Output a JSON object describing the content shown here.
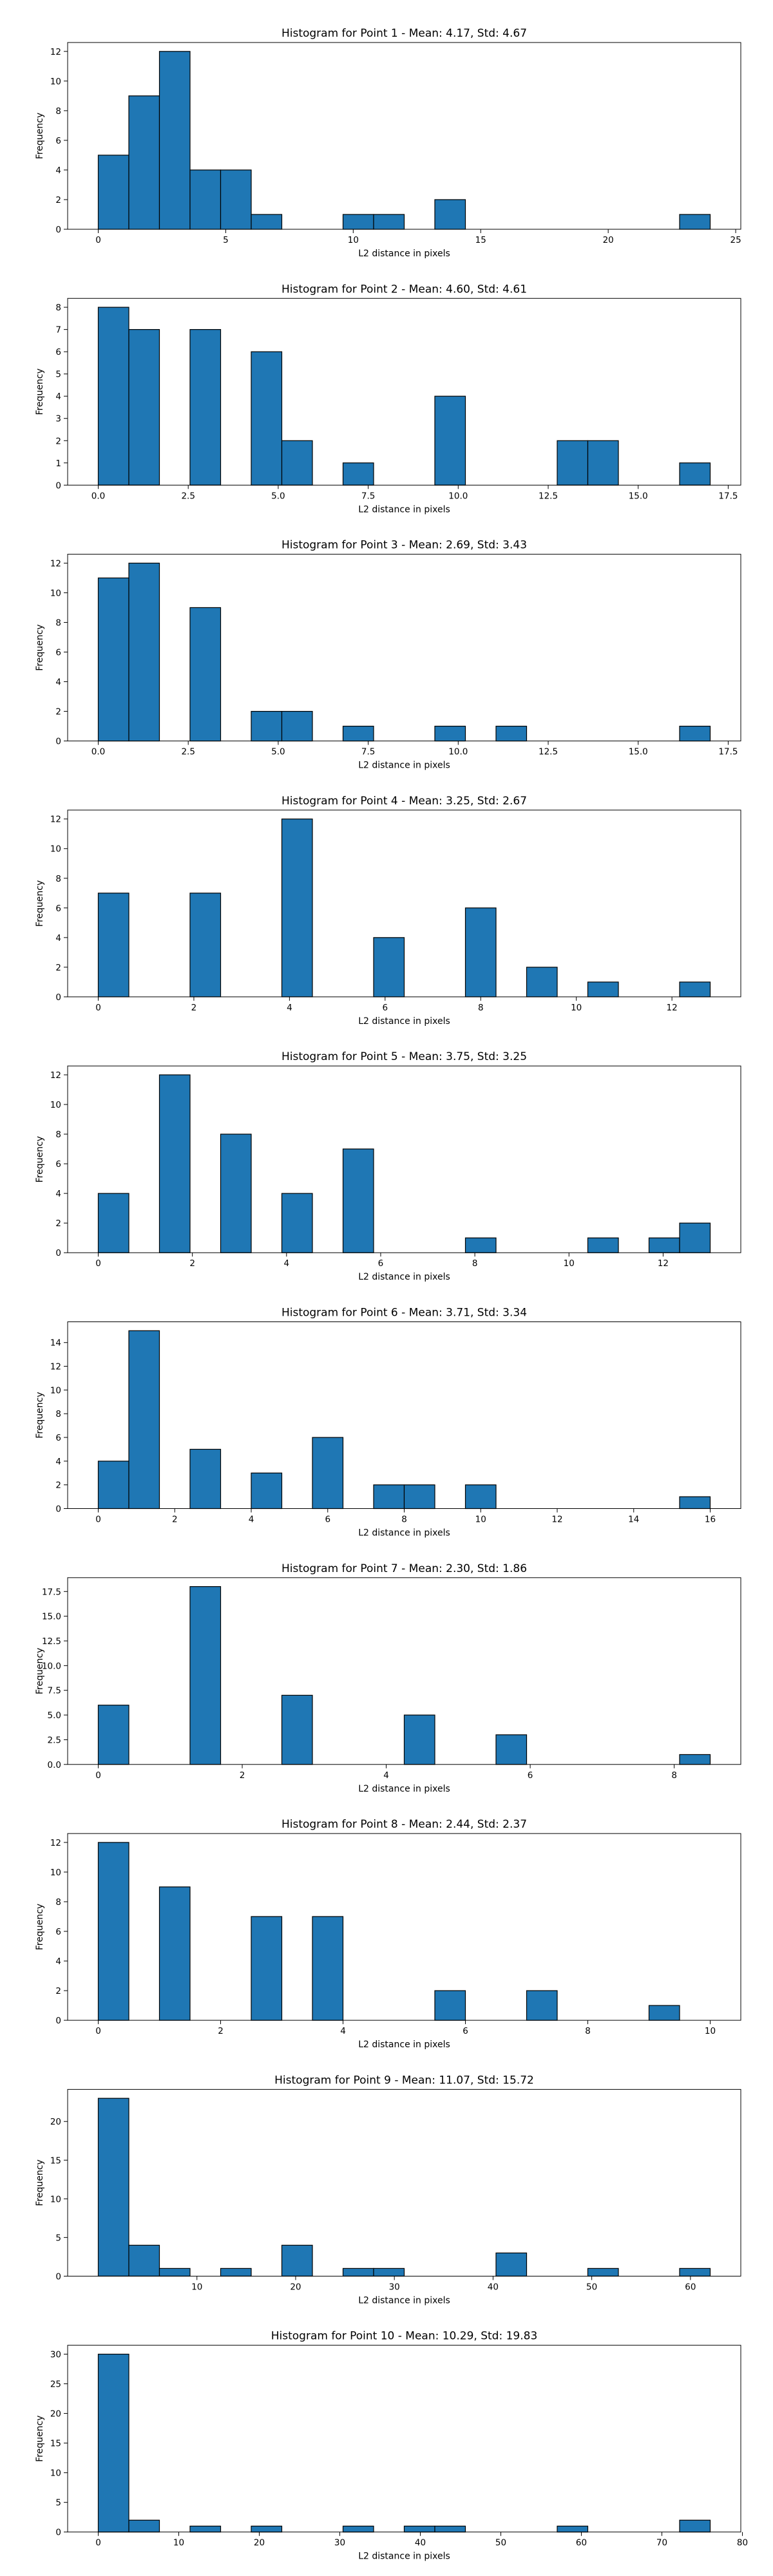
{
  "chart_data": [
    {
      "type": "bar",
      "title": "Histogram for Point 1 - Mean: 4.17, Std: 4.67",
      "xlabel": "L2 distance in pixels",
      "ylabel": "Frequency",
      "xlim": [
        -1.2,
        25.2
      ],
      "ylim": [
        0,
        12.6
      ],
      "xticks": [
        0,
        5,
        10,
        15,
        20,
        25
      ],
      "xtick_labels": [
        "0",
        "5",
        "10",
        "15",
        "20",
        "25"
      ],
      "yticks": [
        0,
        2,
        4,
        6,
        8,
        10,
        12
      ],
      "ytick_labels": [
        "0",
        "2",
        "4",
        "6",
        "8",
        "10",
        "12"
      ],
      "bin_edges": [
        0.0,
        1.2,
        2.4,
        3.6,
        4.8,
        6.0,
        7.2,
        8.4,
        9.6,
        10.8,
        12.0,
        13.2,
        14.4,
        15.6,
        16.8,
        18.0,
        19.2,
        20.4,
        21.6,
        22.8,
        24.0
      ],
      "values": [
        5,
        9,
        12,
        4,
        4,
        1,
        0,
        0,
        1,
        1,
        0,
        2,
        0,
        0,
        0,
        0,
        0,
        0,
        0,
        1
      ]
    },
    {
      "type": "bar",
      "title": "Histogram for Point 2 - Mean: 4.60, Std: 4.61",
      "xlabel": "L2 distance in pixels",
      "ylabel": "Frequency",
      "xlim": [
        -0.85,
        17.85
      ],
      "ylim": [
        0,
        8.4
      ],
      "xticks": [
        0,
        2.5,
        5,
        7.5,
        10,
        12.5,
        15,
        17.5
      ],
      "xtick_labels": [
        "0.0",
        "2.5",
        "5.0",
        "7.5",
        "10.0",
        "12.5",
        "15.0",
        "17.5"
      ],
      "yticks": [
        0,
        1,
        2,
        3,
        4,
        5,
        6,
        7,
        8
      ],
      "ytick_labels": [
        "0",
        "1",
        "2",
        "3",
        "4",
        "5",
        "6",
        "7",
        "8"
      ],
      "bin_edges": [
        0.0,
        0.85,
        1.7,
        2.55,
        3.4,
        4.25,
        5.1,
        5.95,
        6.8,
        7.65,
        8.5,
        9.35,
        10.2,
        11.05,
        11.9,
        12.75,
        13.6,
        14.45,
        15.3,
        16.15,
        17.0
      ],
      "values": [
        8,
        7,
        0,
        7,
        0,
        6,
        2,
        0,
        1,
        0,
        0,
        4,
        0,
        0,
        0,
        2,
        2,
        0,
        0,
        1
      ]
    },
    {
      "type": "bar",
      "title": "Histogram for Point 3 - Mean: 2.69, Std: 3.43",
      "xlabel": "L2 distance in pixels",
      "ylabel": "Frequency",
      "xlim": [
        -0.85,
        17.85
      ],
      "ylim": [
        0,
        12.6
      ],
      "xticks": [
        0,
        2.5,
        5,
        7.5,
        10,
        12.5,
        15,
        17.5
      ],
      "xtick_labels": [
        "0.0",
        "2.5",
        "5.0",
        "7.5",
        "10.0",
        "12.5",
        "15.0",
        "17.5"
      ],
      "yticks": [
        0,
        2,
        4,
        6,
        8,
        10,
        12
      ],
      "ytick_labels": [
        "0",
        "2",
        "4",
        "6",
        "8",
        "10",
        "12"
      ],
      "bin_edges": [
        0.0,
        0.85,
        1.7,
        2.55,
        3.4,
        4.25,
        5.1,
        5.95,
        6.8,
        7.65,
        8.5,
        9.35,
        10.2,
        11.05,
        11.9,
        12.75,
        13.6,
        14.45,
        15.3,
        16.15,
        17.0
      ],
      "values": [
        11,
        12,
        0,
        9,
        0,
        2,
        2,
        0,
        1,
        0,
        0,
        1,
        0,
        1,
        0,
        0,
        0,
        0,
        0,
        1
      ]
    },
    {
      "type": "bar",
      "title": "Histogram for Point 4 - Mean: 3.25, Std: 2.67",
      "xlabel": "L2 distance in pixels",
      "ylabel": "Frequency",
      "xlim": [
        -0.64,
        13.44
      ],
      "ylim": [
        0,
        12.6
      ],
      "xticks": [
        0,
        2,
        4,
        6,
        8,
        10,
        12
      ],
      "xtick_labels": [
        "0",
        "2",
        "4",
        "6",
        "8",
        "10",
        "12"
      ],
      "yticks": [
        0,
        2,
        4,
        6,
        8,
        10,
        12
      ],
      "ytick_labels": [
        "0",
        "2",
        "4",
        "6",
        "8",
        "10",
        "12"
      ],
      "bin_edges": [
        0.0,
        0.64,
        1.28,
        1.92,
        2.56,
        3.2,
        3.84,
        4.48,
        5.12,
        5.76,
        6.4,
        7.04,
        7.68,
        8.32,
        8.96,
        9.6,
        10.24,
        10.88,
        11.52,
        12.16,
        12.8
      ],
      "values": [
        7,
        0,
        0,
        7,
        0,
        0,
        12,
        0,
        0,
        4,
        0,
        0,
        6,
        0,
        2,
        0,
        1,
        0,
        0,
        1
      ]
    },
    {
      "type": "bar",
      "title": "Histogram for Point 5 - Mean: 3.75, Std: 3.25",
      "xlabel": "L2 distance in pixels",
      "ylabel": "Frequency",
      "xlim": [
        -0.65,
        13.65
      ],
      "ylim": [
        0,
        12.6
      ],
      "xticks": [
        0,
        2,
        4,
        6,
        8,
        10,
        12
      ],
      "xtick_labels": [
        "0",
        "2",
        "4",
        "6",
        "8",
        "10",
        "12"
      ],
      "yticks": [
        0,
        2,
        4,
        6,
        8,
        10,
        12
      ],
      "ytick_labels": [
        "0",
        "2",
        "4",
        "6",
        "8",
        "10",
        "12"
      ],
      "bin_edges": [
        0.0,
        0.65,
        1.3,
        1.95,
        2.6,
        3.25,
        3.9,
        4.55,
        5.2,
        5.85,
        6.5,
        7.15,
        7.8,
        8.45,
        9.1,
        9.75,
        10.4,
        11.05,
        11.7,
        12.35,
        13.0
      ],
      "values": [
        4,
        0,
        12,
        0,
        8,
        0,
        4,
        0,
        7,
        0,
        0,
        0,
        1,
        0,
        0,
        0,
        1,
        0,
        1,
        2
      ]
    },
    {
      "type": "bar",
      "title": "Histogram for Point 6 - Mean: 3.71, Std: 3.34",
      "xlabel": "L2 distance in pixels",
      "ylabel": "Frequency",
      "xlim": [
        -0.8,
        16.8
      ],
      "ylim": [
        0,
        15.75
      ],
      "xticks": [
        0,
        2,
        4,
        6,
        8,
        10,
        12,
        14,
        16
      ],
      "xtick_labels": [
        "0",
        "2",
        "4",
        "6",
        "8",
        "10",
        "12",
        "14",
        "16"
      ],
      "yticks": [
        0,
        2,
        4,
        6,
        8,
        10,
        12,
        14
      ],
      "ytick_labels": [
        "0",
        "2",
        "4",
        "6",
        "8",
        "10",
        "12",
        "14"
      ],
      "bin_edges": [
        0.0,
        0.8,
        1.6,
        2.4,
        3.2,
        4.0,
        4.8,
        5.6,
        6.4,
        7.2,
        8.0,
        8.8,
        9.6,
        10.4,
        11.2,
        12.0,
        12.8,
        13.6,
        14.4,
        15.2,
        16.0
      ],
      "values": [
        4,
        15,
        0,
        5,
        0,
        3,
        0,
        6,
        0,
        2,
        2,
        0,
        2,
        0,
        0,
        0,
        0,
        0,
        0,
        1
      ]
    },
    {
      "type": "bar",
      "title": "Histogram for Point 7 - Mean: 2.30, Std: 1.86",
      "xlabel": "L2 distance in pixels",
      "ylabel": "Frequency",
      "xlim": [
        -0.425,
        8.925
      ],
      "ylim": [
        0,
        18.9
      ],
      "xticks": [
        0,
        2,
        4,
        6,
        8
      ],
      "xtick_labels": [
        "0",
        "2",
        "4",
        "6",
        "8"
      ],
      "yticks": [
        0,
        2.5,
        5,
        7.5,
        10,
        12.5,
        15,
        17.5
      ],
      "ytick_labels": [
        "0.0",
        "2.5",
        "5.0",
        "7.5",
        "10.0",
        "12.5",
        "15.0",
        "17.5"
      ],
      "bin_edges": [
        0.0,
        0.425,
        0.85,
        1.275,
        1.7,
        2.125,
        2.55,
        2.975,
        3.4,
        3.825,
        4.25,
        4.675,
        5.1,
        5.525,
        5.95,
        6.375,
        6.8,
        7.225,
        7.65,
        8.075,
        8.5
      ],
      "values": [
        6,
        0,
        0,
        18,
        0,
        0,
        7,
        0,
        0,
        0,
        5,
        0,
        0,
        3,
        0,
        0,
        0,
        0,
        0,
        1
      ]
    },
    {
      "type": "bar",
      "title": "Histogram for Point 8 - Mean: 2.44, Std: 2.37",
      "xlabel": "L2 distance in pixels",
      "ylabel": "Frequency",
      "xlim": [
        -0.5,
        10.5
      ],
      "ylim": [
        0,
        12.6
      ],
      "xticks": [
        0,
        2,
        4,
        6,
        8,
        10
      ],
      "xtick_labels": [
        "0",
        "2",
        "4",
        "6",
        "8",
        "10"
      ],
      "yticks": [
        0,
        2,
        4,
        6,
        8,
        10,
        12
      ],
      "ytick_labels": [
        "0",
        "2",
        "4",
        "6",
        "8",
        "10",
        "12"
      ],
      "bin_edges": [
        0.0,
        0.5,
        1.0,
        1.5,
        2.0,
        2.5,
        3.0,
        3.5,
        4.0,
        4.5,
        5.0,
        5.5,
        6.0,
        6.5,
        7.0,
        7.5,
        8.0,
        8.5,
        9.0,
        9.5,
        10.0
      ],
      "values": [
        12,
        0,
        9,
        0,
        0,
        7,
        0,
        7,
        0,
        0,
        0,
        2,
        0,
        0,
        2,
        0,
        0,
        0,
        1,
        0
      ]
    },
    {
      "type": "bar",
      "title": "Histogram for Point 9 - Mean: 11.07, Std: 15.72",
      "xlabel": "L2 distance in pixels",
      "ylabel": "Frequency",
      "xlim": [
        -3.1,
        65.1
      ],
      "ylim": [
        0,
        24.15
      ],
      "xticks": [
        10,
        20,
        30,
        40,
        50,
        60
      ],
      "xtick_labels": [
        "10",
        "20",
        "30",
        "40",
        "50",
        "60"
      ],
      "yticks": [
        0,
        5,
        10,
        15,
        20
      ],
      "ytick_labels": [
        "0",
        "5",
        "10",
        "15",
        "20"
      ],
      "bin_edges": [
        0.0,
        3.1,
        6.2,
        9.3,
        12.4,
        15.5,
        18.6,
        21.7,
        24.8,
        27.9,
        31.0,
        34.1,
        37.2,
        40.3,
        43.4,
        46.5,
        49.6,
        52.7,
        55.8,
        58.9,
        62.0
      ],
      "values": [
        23,
        4,
        1,
        0,
        1,
        0,
        4,
        0,
        1,
        1,
        0,
        0,
        0,
        3,
        0,
        0,
        1,
        0,
        0,
        1
      ]
    },
    {
      "type": "bar",
      "title": "Histogram for Point 10 - Mean: 10.29, Std: 19.83",
      "xlabel": "L2 distance in pixels",
      "ylabel": "Frequency",
      "xlim": [
        -3.8,
        79.8
      ],
      "ylim": [
        0,
        31.5
      ],
      "xticks": [
        0,
        10,
        20,
        30,
        40,
        50,
        60,
        70,
        80
      ],
      "xtick_labels": [
        "0",
        "10",
        "20",
        "30",
        "40",
        "50",
        "60",
        "70",
        "80"
      ],
      "yticks": [
        0,
        5,
        10,
        15,
        20,
        25,
        30
      ],
      "ytick_labels": [
        "0",
        "5",
        "10",
        "15",
        "20",
        "25",
        "30"
      ],
      "bin_edges": [
        0.0,
        3.8,
        7.6,
        11.4,
        15.2,
        19.0,
        22.8,
        26.6,
        30.4,
        34.2,
        38.0,
        41.8,
        45.6,
        49.4,
        53.2,
        57.0,
        60.8,
        64.6,
        68.4,
        72.2,
        76.0
      ],
      "values": [
        30,
        2,
        0,
        1,
        0,
        1,
        0,
        0,
        1,
        0,
        1,
        1,
        0,
        0,
        0,
        1,
        0,
        0,
        0,
        2
      ]
    }
  ],
  "colors": {
    "bar_fill": "#1f77b4",
    "bar_edge": "#000000",
    "axis": "#000000"
  }
}
